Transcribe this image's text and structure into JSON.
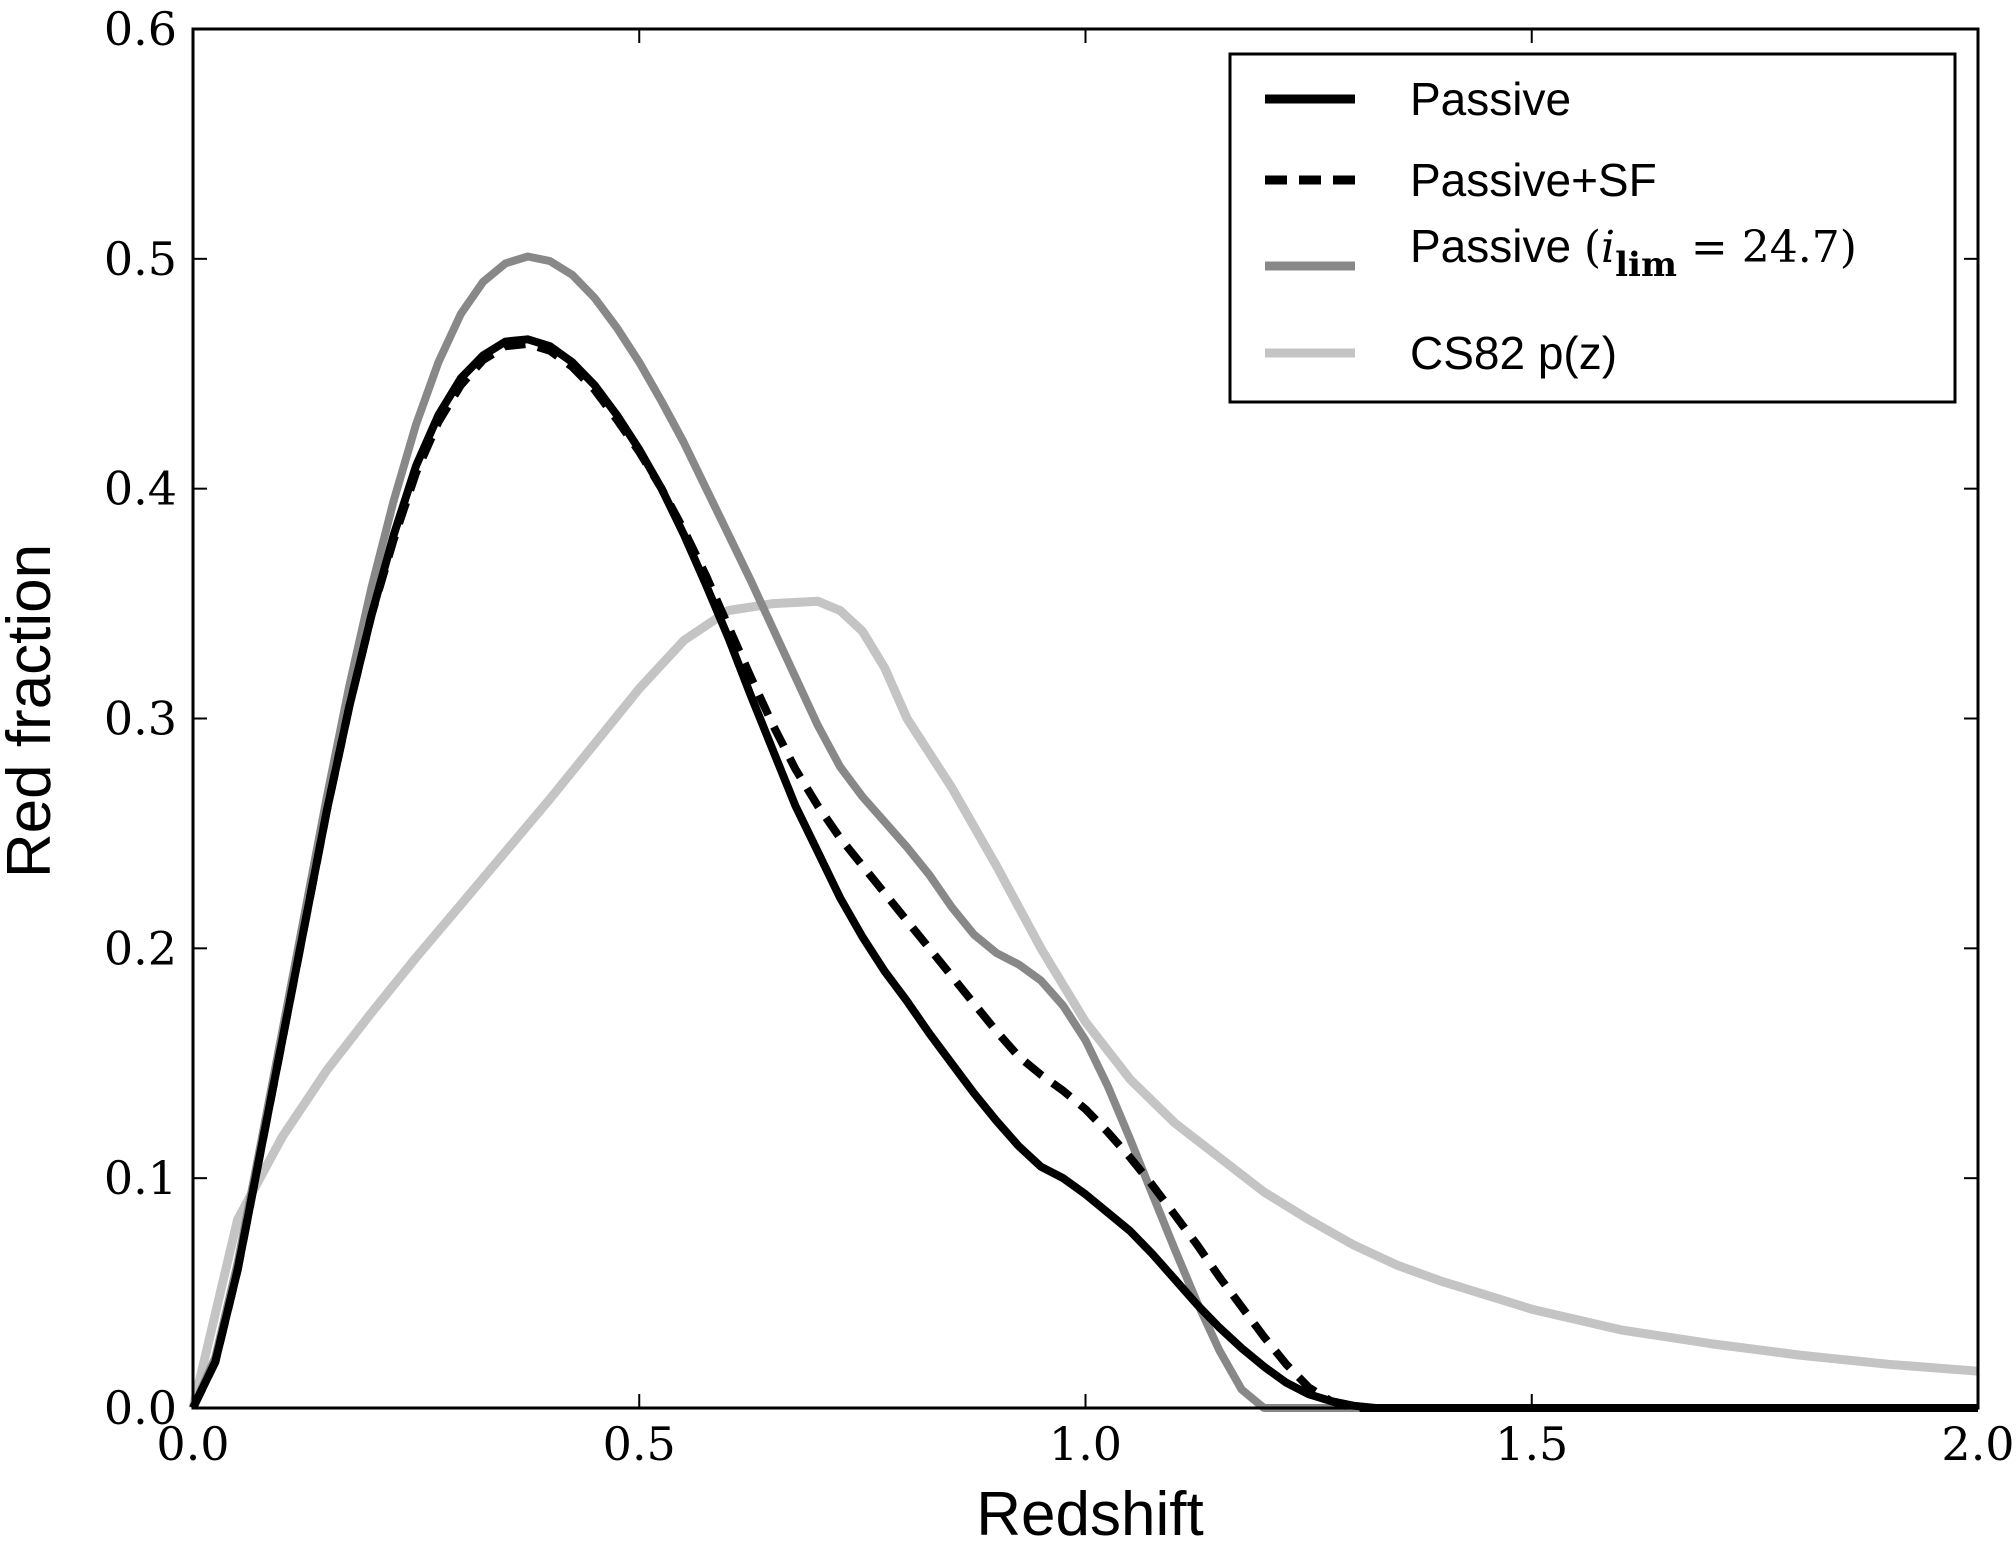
{
  "chart_data": {
    "type": "line",
    "xlabel": "Redshift",
    "ylabel": "Red fraction",
    "xlim": [
      0.0,
      2.0
    ],
    "ylim": [
      0.0,
      0.6
    ],
    "xticks": [
      "0.0",
      "0.5",
      "1.0",
      "1.5",
      "2.0"
    ],
    "yticks": [
      "0.0",
      "0.1",
      "0.2",
      "0.3",
      "0.4",
      "0.5",
      "0.6"
    ],
    "grid": false,
    "legend_position": "top-right",
    "series": [
      {
        "name": "Passive",
        "color": "#000000",
        "style": "solid",
        "x": [
          0.0,
          0.025,
          0.05,
          0.075,
          0.1,
          0.125,
          0.15,
          0.175,
          0.2,
          0.225,
          0.25,
          0.275,
          0.3,
          0.325,
          0.35,
          0.375,
          0.4,
          0.425,
          0.45,
          0.475,
          0.5,
          0.525,
          0.55,
          0.575,
          0.6,
          0.625,
          0.65,
          0.675,
          0.7,
          0.725,
          0.75,
          0.775,
          0.8,
          0.825,
          0.85,
          0.875,
          0.9,
          0.925,
          0.95,
          0.975,
          1.0,
          1.025,
          1.05,
          1.075,
          1.1,
          1.125,
          1.15,
          1.175,
          1.2,
          1.225,
          1.25,
          1.275,
          1.3,
          1.325,
          1.35,
          1.375,
          1.4,
          1.425,
          1.45,
          1.5,
          1.6,
          1.7,
          1.8,
          1.9,
          2.0
        ],
        "y": [
          0.0,
          0.02,
          0.06,
          0.11,
          0.16,
          0.21,
          0.26,
          0.305,
          0.345,
          0.38,
          0.41,
          0.432,
          0.448,
          0.458,
          0.464,
          0.465,
          0.462,
          0.455,
          0.445,
          0.432,
          0.417,
          0.4,
          0.38,
          0.358,
          0.335,
          0.31,
          0.286,
          0.262,
          0.242,
          0.222,
          0.205,
          0.19,
          0.177,
          0.163,
          0.15,
          0.137,
          0.125,
          0.114,
          0.105,
          0.1,
          0.093,
          0.085,
          0.077,
          0.067,
          0.056,
          0.045,
          0.035,
          0.026,
          0.018,
          0.011,
          0.006,
          0.003,
          0.001,
          0.0,
          0.0,
          0.0,
          0.0,
          0.0,
          0.0,
          0.0,
          0.0,
          0.0,
          0.0,
          0.0,
          0.0
        ]
      },
      {
        "name": "Passive+SF",
        "color": "#000000",
        "style": "dashed",
        "x": [
          0.0,
          0.025,
          0.05,
          0.075,
          0.1,
          0.125,
          0.15,
          0.175,
          0.2,
          0.225,
          0.25,
          0.275,
          0.3,
          0.325,
          0.35,
          0.375,
          0.4,
          0.425,
          0.45,
          0.475,
          0.5,
          0.525,
          0.55,
          0.575,
          0.6,
          0.625,
          0.65,
          0.675,
          0.7,
          0.725,
          0.75,
          0.775,
          0.8,
          0.825,
          0.85,
          0.875,
          0.9,
          0.925,
          0.95,
          0.975,
          1.0,
          1.025,
          1.05,
          1.075,
          1.1,
          1.125,
          1.15,
          1.175,
          1.2,
          1.225,
          1.25,
          1.275,
          1.3,
          1.325,
          1.35,
          1.375,
          1.4,
          1.425
        ],
        "y": [
          0.0,
          0.02,
          0.06,
          0.11,
          0.16,
          0.21,
          0.26,
          0.305,
          0.345,
          0.378,
          0.407,
          0.429,
          0.445,
          0.456,
          0.462,
          0.463,
          0.46,
          0.453,
          0.443,
          0.43,
          0.416,
          0.4,
          0.382,
          0.362,
          0.34,
          0.318,
          0.297,
          0.278,
          0.262,
          0.248,
          0.236,
          0.224,
          0.212,
          0.2,
          0.188,
          0.176,
          0.164,
          0.153,
          0.145,
          0.138,
          0.13,
          0.12,
          0.109,
          0.097,
          0.084,
          0.071,
          0.057,
          0.044,
          0.031,
          0.019,
          0.009,
          0.003,
          0.0,
          0.0,
          0.0,
          0.0,
          0.0,
          0.0
        ]
      },
      {
        "name": "Passive (i_lim = 24.7)",
        "color": "#888888",
        "style": "solid",
        "x": [
          0.0,
          0.025,
          0.05,
          0.075,
          0.1,
          0.125,
          0.15,
          0.175,
          0.2,
          0.225,
          0.25,
          0.275,
          0.3,
          0.325,
          0.35,
          0.375,
          0.4,
          0.425,
          0.45,
          0.475,
          0.5,
          0.525,
          0.55,
          0.575,
          0.6,
          0.625,
          0.65,
          0.675,
          0.7,
          0.725,
          0.75,
          0.775,
          0.8,
          0.825,
          0.85,
          0.875,
          0.9,
          0.925,
          0.95,
          0.975,
          1.0,
          1.025,
          1.05,
          1.075,
          1.1,
          1.125,
          1.15,
          1.175,
          1.2,
          1.225,
          1.25,
          1.275,
          1.3,
          1.325,
          1.35,
          1.375,
          1.4,
          1.425,
          1.45,
          1.5,
          1.6,
          1.7,
          1.8,
          1.9,
          2.0
        ],
        "y": [
          0.0,
          0.022,
          0.063,
          0.113,
          0.164,
          0.215,
          0.266,
          0.314,
          0.357,
          0.395,
          0.428,
          0.455,
          0.476,
          0.49,
          0.498,
          0.501,
          0.499,
          0.493,
          0.483,
          0.47,
          0.455,
          0.438,
          0.42,
          0.4,
          0.38,
          0.36,
          0.339,
          0.318,
          0.297,
          0.279,
          0.266,
          0.255,
          0.244,
          0.232,
          0.218,
          0.206,
          0.198,
          0.193,
          0.186,
          0.175,
          0.16,
          0.14,
          0.117,
          0.093,
          0.069,
          0.046,
          0.025,
          0.008,
          0.0,
          0.0,
          0.0,
          0.0,
          0.0,
          0.0,
          0.0,
          0.0,
          0.0,
          0.0,
          0.0,
          0.0,
          0.0,
          0.0,
          0.0,
          0.0,
          0.0
        ]
      },
      {
        "name": "CS82 p(z)",
        "color": "#c4c4c4",
        "style": "solid",
        "x": [
          0.0,
          0.05,
          0.1,
          0.15,
          0.2,
          0.25,
          0.3,
          0.35,
          0.4,
          0.45,
          0.5,
          0.55,
          0.6,
          0.65,
          0.7,
          0.725,
          0.75,
          0.775,
          0.8,
          0.85,
          0.9,
          0.95,
          1.0,
          1.05,
          1.1,
          1.15,
          1.2,
          1.25,
          1.3,
          1.35,
          1.4,
          1.5,
          1.6,
          1.7,
          1.8,
          1.9,
          2.0
        ],
        "y": [
          0.0,
          0.082,
          0.118,
          0.147,
          0.172,
          0.196,
          0.219,
          0.242,
          0.265,
          0.289,
          0.313,
          0.334,
          0.347,
          0.35,
          0.351,
          0.347,
          0.338,
          0.322,
          0.3,
          0.27,
          0.236,
          0.2,
          0.168,
          0.143,
          0.124,
          0.109,
          0.094,
          0.082,
          0.071,
          0.062,
          0.055,
          0.043,
          0.034,
          0.028,
          0.023,
          0.019,
          0.016
        ]
      }
    ]
  }
}
